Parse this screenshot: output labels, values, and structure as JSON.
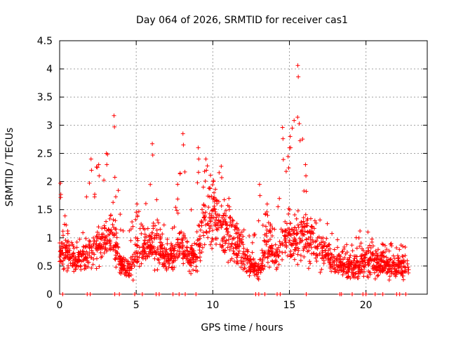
{
  "chart_data": {
    "type": "scatter",
    "title": "Day 064 of 2026, SRMTID for receiver cas1",
    "xlabel": "GPS time / hours",
    "ylabel": "SRMTID / TECUs",
    "xlim": [
      0,
      24
    ],
    "ylim": [
      0,
      4.5
    ],
    "xticks": [
      0,
      5,
      10,
      15,
      20
    ],
    "yticks": [
      0,
      0.5,
      1,
      1.5,
      2,
      2.5,
      3,
      3.5,
      4,
      4.5
    ],
    "xtick_labels": [
      "0",
      "5",
      "10",
      "15",
      "20"
    ],
    "ytick_labels": [
      "0",
      "0.5",
      "1",
      "1.5",
      "2",
      "2.5",
      "3",
      "3.5",
      "4",
      "4.5"
    ],
    "grid": true,
    "marker": "plus",
    "color": "#ff0000",
    "envelope": {
      "x": [
        0.0,
        0.5,
        1.0,
        1.5,
        2.0,
        2.5,
        3.0,
        3.5,
        4.0,
        4.5,
        5.0,
        5.5,
        6.0,
        6.5,
        7.0,
        7.5,
        8.0,
        8.5,
        9.0,
        9.5,
        10.0,
        10.5,
        11.0,
        11.5,
        12.0,
        12.5,
        13.0,
        13.5,
        14.0,
        14.5,
        15.0,
        15.5,
        16.0,
        16.5,
        17.0,
        17.5,
        18.0,
        18.5,
        19.0,
        19.5,
        20.0,
        20.5,
        21.0,
        21.5,
        22.0,
        22.5,
        23.0
      ],
      "center": [
        0.8,
        0.7,
        0.65,
        0.7,
        0.8,
        0.9,
        1.0,
        1.1,
        0.5,
        0.4,
        0.7,
        0.8,
        0.9,
        0.8,
        0.6,
        0.7,
        0.9,
        0.6,
        0.8,
        1.3,
        1.4,
        1.2,
        1.0,
        0.9,
        0.7,
        0.5,
        0.4,
        0.9,
        0.6,
        0.9,
        1.1,
        1.0,
        1.0,
        0.9,
        0.8,
        0.7,
        0.6,
        0.5,
        0.5,
        0.5,
        0.6,
        0.6,
        0.55,
        0.5,
        0.5,
        0.5,
        0.5
      ],
      "max": [
        1.97,
        1.2,
        1.0,
        1.1,
        2.4,
        2.3,
        2.5,
        3.17,
        1.3,
        1.1,
        1.6,
        1.3,
        2.67,
        1.5,
        1.1,
        1.4,
        2.85,
        1.5,
        2.6,
        2.4,
        2.0,
        2.27,
        1.7,
        1.3,
        1.2,
        1.0,
        1.95,
        1.6,
        1.2,
        2.96,
        2.8,
        4.06,
        2.3,
        1.5,
        1.4,
        1.3,
        1.0,
        0.9,
        0.9,
        1.1,
        1.22,
        0.95,
        0.9,
        0.9,
        1.0,
        0.9,
        0.8
      ]
    },
    "zero_band_hours": [
      0.2,
      1.8,
      2.0,
      3.6,
      3.9,
      4.9,
      5.4,
      6.3,
      6.5,
      7.4,
      7.8,
      8.2,
      8.9,
      12.8,
      13.0,
      13.4,
      14.2,
      14.4,
      16.1,
      18.3,
      18.4,
      19.1,
      19.8,
      20.0,
      20.6,
      21.1,
      22.0,
      22.2,
      22.6
    ],
    "point_count": 1900
  }
}
